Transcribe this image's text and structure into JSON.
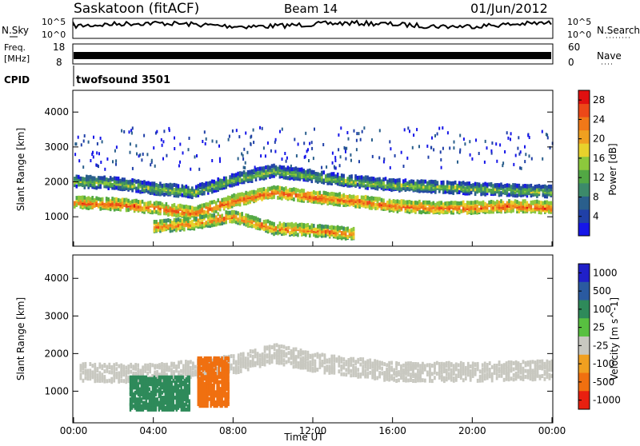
{
  "header": {
    "station": "Saskatoon (fitACF)",
    "beam": "Beam 14",
    "date": "01/Jun/2012"
  },
  "noise_panel": {
    "left_label": "N.Sky",
    "right_label": "N.Search",
    "left_ticks": [
      "10^5",
      "10^0"
    ],
    "right_ticks": [
      "10^5",
      "10^0"
    ]
  },
  "freq_panel": {
    "left_label_1": "Freq.",
    "left_label_2": "[MHz]",
    "right_label": "Nave",
    "left_ticks": [
      "18",
      "8"
    ],
    "right_ticks": [
      "60",
      "0"
    ]
  },
  "cpid_panel": {
    "label": "CPID",
    "value": "twofsound 3501"
  },
  "chart_data": [
    {
      "type": "heatmap",
      "quantity": "power",
      "ylabel": "Slant Range [km]",
      "ylim": [
        180,
        4600
      ],
      "yticks": [
        "1000",
        "2000",
        "3000",
        "4000"
      ],
      "ytick_values": [
        1000,
        2000,
        3000,
        4000
      ],
      "xlim": [
        0,
        24
      ],
      "colorbar": {
        "label": "Power [dB]",
        "ticks": [
          "4",
          "8",
          "12",
          "16",
          "20",
          "24",
          "28"
        ],
        "tick_values": [
          4,
          8,
          12,
          16,
          20,
          24,
          28
        ],
        "range": [
          0,
          30
        ],
        "colors": [
          "#1616e8",
          "#2040a8",
          "#2a5f8c",
          "#3c8a6a",
          "#52a844",
          "#8cc83c",
          "#e8d22c",
          "#f0a020",
          "#f07818",
          "#ec4818",
          "#e01010"
        ]
      },
      "echo_bands": [
        {
          "range_km": [
            [
              0,
              1400
            ],
            [
              2,
              1350
            ],
            [
              4,
              1250
            ],
            [
              6,
              1100
            ],
            [
              8,
              1450
            ],
            [
              10,
              1700
            ],
            [
              12,
              1550
            ],
            [
              14,
              1450
            ],
            [
              16,
              1300
            ],
            [
              18,
              1250
            ],
            [
              20,
              1250
            ],
            [
              22,
              1300
            ],
            [
              24,
              1250
            ]
          ],
          "power_db": 26
        },
        {
          "range_km": [
            [
              0,
              2000
            ],
            [
              2,
              1950
            ],
            [
              4,
              1800
            ],
            [
              6,
              1700
            ],
            [
              8,
              2050
            ],
            [
              10,
              2300
            ],
            [
              12,
              2150
            ],
            [
              14,
              2000
            ],
            [
              16,
              1900
            ],
            [
              18,
              1850
            ],
            [
              20,
              1800
            ],
            [
              22,
              1750
            ],
            [
              24,
              1700
            ]
          ],
          "power_db": 15
        },
        {
          "range_km": [
            [
              4,
              700
            ],
            [
              6,
              800
            ],
            [
              8,
              1000
            ],
            [
              10,
              650
            ],
            [
              12,
              600
            ],
            [
              14,
              500
            ]
          ],
          "power_db": 24
        }
      ]
    },
    {
      "type": "heatmap",
      "quantity": "velocity",
      "ylabel": "Slant Range [km]",
      "ylim": [
        180,
        4600
      ],
      "yticks": [
        "1000",
        "2000",
        "3000",
        "4000"
      ],
      "ytick_values": [
        1000,
        2000,
        3000,
        4000
      ],
      "xlim": [
        0,
        24
      ],
      "xticks": [
        "00:00",
        "04:00",
        "08:00",
        "12:00",
        "16:00",
        "20:00",
        "00:00"
      ],
      "xtick_values": [
        0,
        4,
        8,
        12,
        16,
        20,
        24
      ],
      "xlabel": "Time UT",
      "colorbar": {
        "label": "Velocity [m s^-1]",
        "ticks": [
          "1000",
          "500",
          "100",
          "25",
          "-25",
          "-100",
          "-500",
          "-1000"
        ],
        "colors": [
          "#2020c8",
          "#2a5aa0",
          "#2e8a5a",
          "#58c040",
          "#c8c8c0",
          "#f0a020",
          "#f07010",
          "#e82010"
        ]
      },
      "ground_scatter_band": {
        "range_km": [
          [
            0,
            1500
          ],
          [
            4,
            1450
          ],
          [
            8,
            1700
          ],
          [
            10,
            2000
          ],
          [
            12,
            1750
          ],
          [
            16,
            1500
          ],
          [
            20,
            1500
          ],
          [
            24,
            1550
          ]
        ],
        "velocity": 0
      },
      "ionospheric_patches": [
        {
          "t_start": 2.8,
          "t_end": 5.8,
          "range_km": [
            500,
            1400
          ],
          "velocity": 300
        },
        {
          "t_start": 6.2,
          "t_end": 7.8,
          "range_km": [
            600,
            1900
          ],
          "velocity": -300
        }
      ]
    }
  ]
}
